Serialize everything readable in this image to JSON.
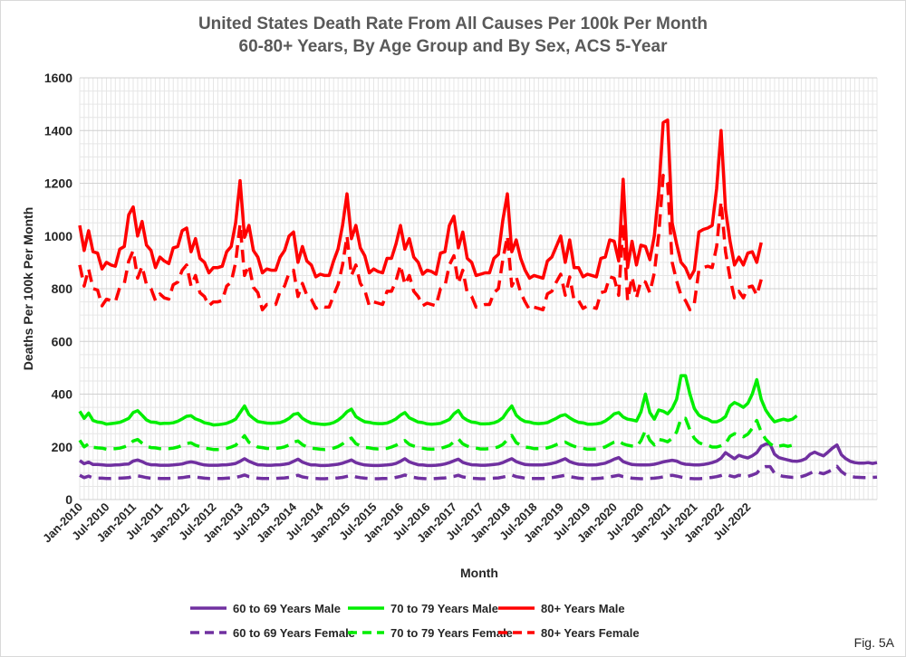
{
  "chart_data": {
    "type": "line",
    "title_lines": [
      "United States Death Rate From All Causes Per 100k Per Month",
      "60-80+ Years, By Age Group and By Sex, ACS 5-Year"
    ],
    "xlabel": "Month",
    "ylabel": "Deaths Per 100k Per Month",
    "ylim": [
      0,
      1600
    ],
    "yticks": [
      0,
      200,
      400,
      600,
      800,
      1000,
      1200,
      1400,
      1600
    ],
    "x_start": "Jan-2010",
    "x_tick_labels": [
      "Jan-2010",
      "Jul-2010",
      "Jan-2011",
      "Jul-2011",
      "Jan-2012",
      "Jul-2012",
      "Jan-2013",
      "Jul-2013",
      "Jan-2014",
      "Jul-2014",
      "Jan-2015",
      "Jul-2015",
      "Jan-2016",
      "Jul-2016",
      "Jan-2017",
      "Jul-2017",
      "Jan-2018",
      "Jul-2018",
      "Jan-2019",
      "Jul-2019",
      "Jan-2020",
      "Jul-2020",
      "Jan-2021",
      "Jul-2021",
      "Jan-2022",
      "Jul-2022"
    ],
    "grid": true,
    "legend_position": "bottom",
    "figure_label": "Fig. 5A",
    "series": [
      {
        "name": "60 to 69 Years Male",
        "color": "#7030a0",
        "dash": "solid",
        "values": [
          148,
          136,
          142,
          133,
          133,
          132,
          130,
          130,
          131,
          132,
          134,
          135,
          146,
          150,
          144,
          136,
          132,
          132,
          130,
          130,
          130,
          131,
          133,
          135,
          140,
          143,
          140,
          135,
          131,
          130,
          130,
          130,
          131,
          132,
          134,
          137,
          145,
          155,
          145,
          138,
          132,
          131,
          130,
          130,
          131,
          132,
          134,
          137,
          145,
          153,
          142,
          136,
          131,
          131,
          129,
          129,
          130,
          132,
          134,
          138,
          144,
          150,
          140,
          135,
          131,
          130,
          129,
          129,
          130,
          131,
          133,
          137,
          145,
          155,
          143,
          137,
          132,
          131,
          129,
          129,
          130,
          132,
          135,
          140,
          147,
          153,
          141,
          136,
          132,
          131,
          130,
          130,
          131,
          133,
          135,
          140,
          148,
          155,
          144,
          138,
          133,
          132,
          131,
          131,
          132,
          134,
          137,
          141,
          148,
          155,
          144,
          138,
          134,
          133,
          131,
          131,
          132,
          135,
          138,
          145,
          153,
          159,
          144,
          138,
          133,
          132,
          131,
          131,
          132,
          134,
          138,
          143,
          146,
          149,
          146,
          138,
          134,
          133,
          131,
          131,
          133,
          136,
          140,
          146,
          157,
          178,
          166,
          155,
          168,
          162,
          158,
          166,
          178,
          202,
          210,
          210,
          172,
          159,
          154,
          150,
          146,
          145,
          148,
          155,
          172,
          180,
          172,
          166,
          180,
          195,
          207,
          170,
          155,
          145,
          140,
          138,
          138,
          140,
          137,
          140
        ]
      },
      {
        "name": "70 to 79 Years Male",
        "color": "#00ee00",
        "dash": "solid",
        "values": [
          335,
          308,
          328,
          300,
          294,
          292,
          286,
          288,
          290,
          293,
          300,
          308,
          330,
          337,
          320,
          302,
          294,
          293,
          288,
          289,
          289,
          291,
          297,
          306,
          316,
          318,
          306,
          300,
          291,
          288,
          283,
          284,
          286,
          289,
          296,
          305,
          330,
          355,
          322,
          308,
          296,
          293,
          290,
          289,
          290,
          292,
          298,
          308,
          323,
          327,
          308,
          298,
          290,
          288,
          286,
          285,
          287,
          292,
          301,
          315,
          333,
          343,
          315,
          304,
          295,
          293,
          289,
          288,
          288,
          290,
          297,
          306,
          320,
          330,
          310,
          302,
          294,
          292,
          287,
          286,
          287,
          289,
          296,
          304,
          325,
          338,
          312,
          301,
          294,
          292,
          287,
          287,
          288,
          291,
          298,
          310,
          335,
          355,
          320,
          305,
          296,
          294,
          289,
          288,
          289,
          292,
          300,
          308,
          318,
          322,
          310,
          300,
          293,
          291,
          286,
          286,
          287,
          290,
          298,
          310,
          325,
          330,
          313,
          305,
          302,
          298,
          332,
          400,
          330,
          305,
          340,
          335,
          325,
          345,
          380,
          470,
          470,
          400,
          345,
          320,
          310,
          305,
          295,
          295,
          302,
          315,
          355,
          368,
          360,
          350,
          365,
          400,
          455,
          380,
          340,
          315,
          295,
          300,
          305,
          300,
          305,
          318
        ]
      },
      {
        "name": "80+ Years Male",
        "color": "#ff0000",
        "dash": "solid",
        "values": [
          1040,
          945,
          1020,
          940,
          935,
          875,
          900,
          890,
          885,
          950,
          960,
          1080,
          1110,
          1000,
          1055,
          965,
          945,
          880,
          920,
          905,
          895,
          955,
          960,
          1020,
          1030,
          940,
          990,
          915,
          900,
          860,
          880,
          880,
          885,
          940,
          960,
          1050,
          1210,
          995,
          1040,
          945,
          920,
          860,
          875,
          870,
          870,
          920,
          945,
          1000,
          1015,
          900,
          960,
          905,
          890,
          845,
          855,
          850,
          850,
          905,
          950,
          1040,
          1160,
          990,
          1040,
          955,
          925,
          860,
          875,
          865,
          860,
          915,
          915,
          970,
          1040,
          950,
          990,
          920,
          900,
          855,
          870,
          865,
          855,
          935,
          940,
          1040,
          1075,
          955,
          1015,
          915,
          900,
          850,
          855,
          860,
          860,
          915,
          930,
          1060,
          1160,
          940,
          985,
          915,
          870,
          840,
          850,
          845,
          840,
          905,
          920,
          960,
          1000,
          900,
          985,
          880,
          880,
          845,
          855,
          850,
          845,
          915,
          920,
          985,
          980,
          905,
          1215,
          880,
          980,
          890,
          965,
          960,
          910,
          1000,
          1170,
          1430,
          1440,
          1050,
          970,
          900,
          880,
          840,
          870,
          1015,
          1025,
          1030,
          1040,
          1180,
          1400,
          1100,
          980,
          890,
          920,
          890,
          935,
          940,
          900,
          975
        ]
      },
      {
        "name": "60 to 69 Years Female",
        "color": "#7030a0",
        "dash": "dashed",
        "values": [
          92,
          83,
          89,
          82,
          81,
          81,
          80,
          80,
          81,
          81,
          82,
          83,
          88,
          90,
          87,
          83,
          81,
          81,
          80,
          80,
          80,
          81,
          82,
          83,
          86,
          88,
          86,
          83,
          81,
          80,
          80,
          80,
          80,
          81,
          82,
          84,
          88,
          93,
          87,
          84,
          81,
          80,
          80,
          80,
          80,
          81,
          82,
          84,
          88,
          92,
          86,
          83,
          81,
          80,
          79,
          79,
          80,
          81,
          82,
          84,
          88,
          91,
          86,
          83,
          81,
          80,
          79,
          79,
          80,
          80,
          81,
          84,
          88,
          93,
          87,
          84,
          81,
          80,
          79,
          79,
          80,
          81,
          82,
          85,
          88,
          92,
          86,
          83,
          81,
          80,
          79,
          79,
          80,
          81,
          82,
          85,
          89,
          93,
          87,
          84,
          81,
          80,
          80,
          80,
          80,
          81,
          83,
          86,
          89,
          92,
          87,
          84,
          81,
          80,
          79,
          79,
          80,
          81,
          83,
          86,
          89,
          92,
          87,
          84,
          81,
          80,
          79,
          79,
          80,
          81,
          83,
          86,
          90,
          92,
          89,
          85,
          82,
          80,
          79,
          79,
          80,
          82,
          84,
          87,
          91,
          96,
          90,
          86,
          92,
          89,
          88,
          93,
          100,
          120,
          125,
          125,
          100,
          92,
          88,
          86,
          84,
          84,
          87,
          92,
          100,
          108,
          102,
          98,
          105,
          114,
          126,
          106,
          94,
          88,
          85,
          84,
          83,
          83,
          84,
          85
        ]
      },
      {
        "name": "70 to 79 Years Female",
        "color": "#00ee00",
        "dash": "dashed",
        "values": [
          225,
          200,
          212,
          198,
          196,
          195,
          191,
          192,
          193,
          195,
          200,
          207,
          222,
          228,
          214,
          202,
          197,
          196,
          193,
          193,
          193,
          195,
          199,
          205,
          213,
          215,
          206,
          201,
          195,
          193,
          190,
          190,
          191,
          194,
          199,
          206,
          223,
          242,
          217,
          208,
          199,
          197,
          194,
          193,
          194,
          196,
          200,
          207,
          218,
          222,
          208,
          200,
          195,
          193,
          191,
          190,
          192,
          195,
          201,
          211,
          225,
          233,
          212,
          204,
          198,
          196,
          193,
          192,
          192,
          194,
          199,
          206,
          216,
          224,
          209,
          203,
          197,
          195,
          192,
          191,
          192,
          194,
          199,
          205,
          219,
          230,
          211,
          203,
          197,
          195,
          192,
          192,
          193,
          195,
          200,
          209,
          227,
          243,
          216,
          206,
          199,
          197,
          193,
          193,
          193,
          196,
          201,
          208,
          215,
          218,
          209,
          202,
          197,
          195,
          191,
          191,
          192,
          195,
          200,
          209,
          218,
          222,
          211,
          206,
          203,
          201,
          223,
          262,
          225,
          207,
          228,
          225,
          219,
          232,
          256,
          308,
          308,
          264,
          232,
          216,
          209,
          206,
          199,
          199,
          204,
          212,
          240,
          250,
          245,
          238,
          248,
          270,
          300,
          256,
          229,
          212,
          200,
          203,
          206,
          202,
          206,
          214
        ]
      },
      {
        "name": "80+ Years Female",
        "color": "#ff0000",
        "dash": "dashed",
        "values": [
          890,
          810,
          875,
          800,
          795,
          735,
          760,
          755,
          750,
          805,
          820,
          905,
          945,
          840,
          885,
          815,
          800,
          755,
          780,
          765,
          760,
          815,
          825,
          870,
          890,
          810,
          850,
          785,
          770,
          735,
          750,
          750,
          755,
          810,
          825,
          900,
          1045,
          850,
          890,
          805,
          785,
          720,
          740,
          740,
          740,
          790,
          810,
          860,
          870,
          770,
          820,
          775,
          760,
          725,
          735,
          730,
          730,
          775,
          815,
          890,
          1000,
          850,
          890,
          820,
          795,
          735,
          750,
          745,
          740,
          790,
          790,
          830,
          890,
          815,
          850,
          790,
          770,
          735,
          745,
          740,
          735,
          800,
          810,
          890,
          925,
          820,
          870,
          785,
          770,
          730,
          735,
          740,
          740,
          785,
          800,
          910,
          1000,
          810,
          845,
          785,
          750,
          720,
          730,
          725,
          720,
          780,
          790,
          825,
          855,
          775,
          845,
          755,
          755,
          725,
          735,
          730,
          725,
          785,
          790,
          845,
          840,
          775,
          1050,
          755,
          845,
          765,
          830,
          825,
          785,
          860,
          1005,
          1230,
          1200,
          900,
          830,
          775,
          755,
          720,
          745,
          870,
          880,
          885,
          880,
          960,
          1130,
          940,
          840,
          765,
          790,
          765,
          805,
          810,
          775,
          835
        ]
      }
    ]
  }
}
